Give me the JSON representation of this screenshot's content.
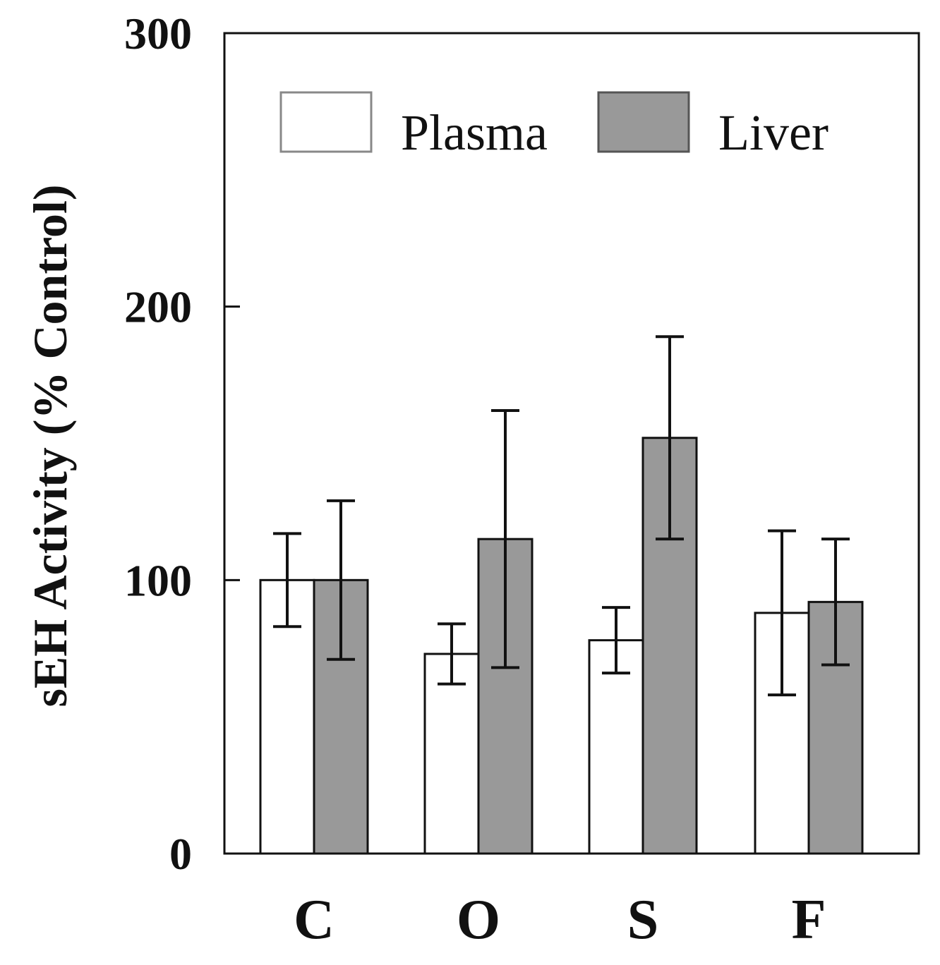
{
  "chart_data": {
    "type": "bar",
    "title": "",
    "xlabel": "",
    "ylabel": "sEH Activity (% Control)",
    "categories": [
      "C",
      "O",
      "S",
      "F"
    ],
    "ylim": [
      0,
      300
    ],
    "yticks": [
      0,
      100,
      200,
      300
    ],
    "grid": false,
    "legend_position": "top",
    "series": [
      {
        "name": "Plasma",
        "color": "#ffffff",
        "values": [
          100,
          73,
          78,
          88
        ],
        "error": [
          17,
          11,
          12,
          30
        ]
      },
      {
        "name": "Liver",
        "color": "#999999",
        "values": [
          100,
          115,
          152,
          92
        ],
        "error": [
          29,
          47,
          37,
          23
        ]
      }
    ]
  }
}
